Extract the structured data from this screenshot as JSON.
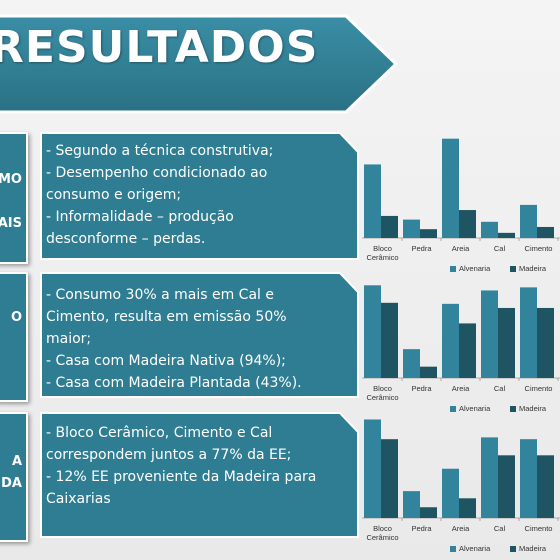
{
  "title": "RESULTADOS",
  "colors": {
    "primary": "#2f7d92",
    "dark": "#1a4e5c",
    "border": "#ffffff",
    "background": "#eeeeee"
  },
  "rows": [
    {
      "label_lines": [
        "MO",
        "AIS"
      ],
      "text_lines": [
        "- Segundo a técnica construtiva;",
        "- Desempenho condicionado ao",
        "consumo e origem;",
        "- Informalidade – produção",
        "desconforme – perdas."
      ]
    },
    {
      "label_lines": [
        "O"
      ],
      "text_lines": [
        "- Consumo 30% a mais em Cal e",
        "Cimento, resulta em emissão  50%",
        "maior;",
        "- Casa com Madeira Nativa (94%);",
        "- Casa com Madeira Plantada (43%)."
      ]
    },
    {
      "label_lines": [
        "A",
        "DA"
      ],
      "text_lines": [
        "- Bloco Cerâmico, Cimento e Cal",
        "correspondem juntos a 77% da EE;",
        "- 12% EE proveniente da Madeira para",
        "Caixarias"
      ]
    }
  ],
  "chart_data": [
    {
      "type": "bar",
      "categories": [
        "Bloco Cerâmico",
        "Pedra",
        "Areia",
        "Cal",
        "Cimento"
      ],
      "series": [
        {
          "name": "Alvenaria",
          "color": "#31849b",
          "values": [
            100,
            25,
            135,
            22,
            45
          ]
        },
        {
          "name": "Madeira",
          "color": "#1f5563",
          "values": [
            30,
            12,
            38,
            7,
            15
          ]
        }
      ],
      "ylim": [
        0,
        140
      ],
      "legend": "bottom"
    },
    {
      "type": "bar",
      "categories": [
        "Bloco Cerâmico",
        "Pedra",
        "Areia",
        "Cal",
        "Cimento"
      ],
      "series": [
        {
          "name": "Alvenaria",
          "color": "#31849b",
          "values": [
            90,
            28,
            72,
            85,
            88
          ]
        },
        {
          "name": "Madeira",
          "color": "#1f5563",
          "values": [
            73,
            11,
            53,
            68,
            68
          ]
        }
      ],
      "ylim": [
        0,
        100
      ],
      "legend": "bottom"
    },
    {
      "type": "bar",
      "categories": [
        "Bloco Cerâmico",
        "Pedra",
        "Areia",
        "Cal",
        "Cimento"
      ],
      "series": [
        {
          "name": "Alvenaria",
          "color": "#31849b",
          "values": [
            110,
            30,
            55,
            90,
            88
          ]
        },
        {
          "name": "Madeira",
          "color": "#1f5563",
          "values": [
            88,
            12,
            22,
            70,
            70
          ]
        }
      ],
      "ylim": [
        0,
        115
      ],
      "legend": "bottom"
    }
  ]
}
